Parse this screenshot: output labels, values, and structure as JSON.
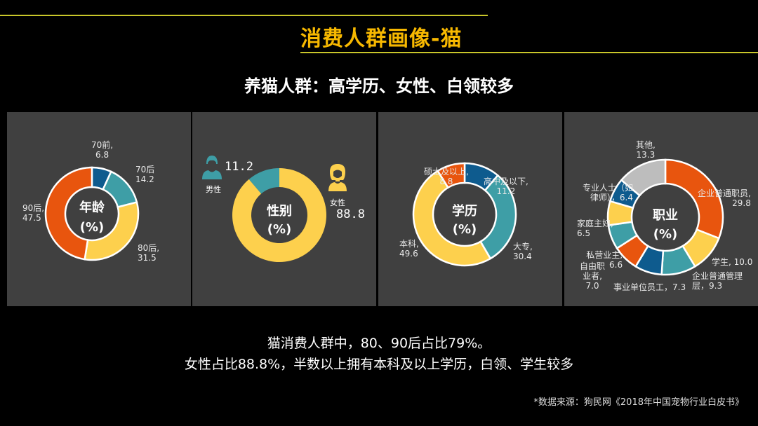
{
  "header": {
    "title": "消费人群画像-猫",
    "subtitle": "养猫人群：高学历、女性、白领较多"
  },
  "colors": {
    "title_yellow": "#F7B800",
    "rule_line": "#C9C62A",
    "panel_bg": "#404040",
    "blue": "#0E5B8E",
    "teal": "#3E9EA6",
    "yellow": "#FDD04D",
    "orange": "#E8550E",
    "grey": "#BDBDBD"
  },
  "panels": {
    "age": {
      "center_title": "年龄",
      "unit": "(%)"
    },
    "gender": {
      "center_title": "性别",
      "unit": "(%)",
      "male_label": "男性",
      "male_value": "11.2",
      "female_label": "女性",
      "female_value": "88.8"
    },
    "education": {
      "center_title": "学历",
      "unit": "(%)"
    },
    "occupation": {
      "center_title": "职业",
      "unit": "(%)"
    }
  },
  "labels": {
    "age": [
      {
        "name": "70前,",
        "value": "6.8"
      },
      {
        "name": "70后",
        "value": "14.2"
      },
      {
        "name": "80后,",
        "value": "31.5"
      },
      {
        "name": "90后,",
        "value": "47.5"
      }
    ],
    "education": [
      {
        "name": "高中及以下,",
        "value": "11.2"
      },
      {
        "name": "大专,",
        "value": "30.4"
      },
      {
        "name": "本科,",
        "value": "49.6"
      },
      {
        "name": "硕士及以上,",
        "value": "8.8"
      }
    ],
    "occupation": [
      {
        "text1": "企业普通职员,",
        "text2": "29.8"
      },
      {
        "text1": "学生, 10.0"
      },
      {
        "text1": "企业普通管理",
        "text2": "层，9.3"
      },
      {
        "text1": "事业单位员工，7.3"
      },
      {
        "text1": "自由职",
        "text2": "业者,",
        "text3": "7.0"
      },
      {
        "text1": "私营业主,",
        "text2": "6.6"
      },
      {
        "text1": "家庭主妇,",
        "text2": "6.5"
      },
      {
        "text1": "专业人士（如",
        "text2": "律师），6.4"
      },
      {
        "text1": "其他,",
        "text2": "13.3"
      }
    ]
  },
  "summary": {
    "line1": "猫消费人群中，80、90后占比79%。",
    "line2": "女性占比88.8%，半数以上拥有本科及以上学历，白领、学生较多"
  },
  "source": "*数据来源：狗民网《2018年中国宠物行业白皮书》",
  "chart_data": [
    {
      "type": "pie",
      "title": "年龄 (%)",
      "categories": [
        "70前",
        "70后",
        "80后",
        "90后"
      ],
      "values": [
        6.8,
        14.2,
        31.5,
        47.5
      ],
      "colors": [
        "#0E5B8E",
        "#3E9EA6",
        "#FDD04D",
        "#E8550E"
      ]
    },
    {
      "type": "pie",
      "title": "性别 (%)",
      "categories": [
        "女性",
        "男性"
      ],
      "values": [
        88.8,
        11.2
      ],
      "colors": [
        "#FDD04D",
        "#3E9EA6"
      ]
    },
    {
      "type": "pie",
      "title": "学历 (%)",
      "categories": [
        "高中及以下",
        "大专",
        "本科",
        "硕士及以上"
      ],
      "values": [
        11.2,
        30.4,
        49.6,
        8.8
      ],
      "colors": [
        "#0E5B8E",
        "#3E9EA6",
        "#FDD04D",
        "#E8550E"
      ]
    },
    {
      "type": "pie",
      "title": "职业 (%)",
      "categories": [
        "企业普通职员",
        "学生",
        "企业普通管理层",
        "事业单位员工",
        "自由职业者",
        "私营业主",
        "家庭主妇",
        "专业人士（如律师）",
        "其他"
      ],
      "values": [
        29.8,
        10.0,
        9.3,
        7.3,
        7.0,
        6.6,
        6.5,
        6.4,
        13.3
      ],
      "colors": [
        "#E8550E",
        "#FDD04D",
        "#3E9EA6",
        "#0E5B8E",
        "#E8550E",
        "#3E9EA6",
        "#FDD04D",
        "#0E5B8E",
        "#BDBDBD"
      ]
    }
  ]
}
